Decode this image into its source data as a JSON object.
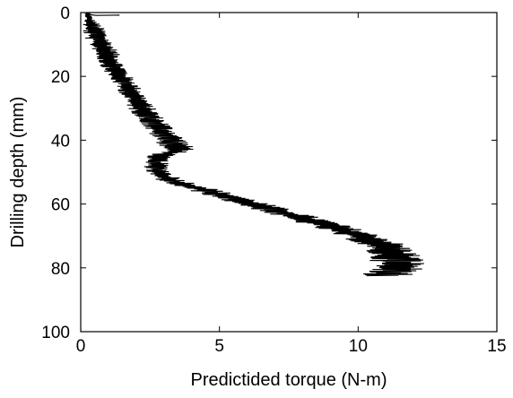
{
  "chart_data": {
    "type": "line",
    "title": "",
    "xlabel": "Predictided torque (N-m)",
    "ylabel": "Drilling depth (mm)",
    "xlim": [
      0,
      15
    ],
    "ylim": [
      0,
      100
    ],
    "y_inverted": true,
    "grid": false,
    "x_ticks": [
      0,
      5,
      10,
      15
    ],
    "y_ticks": [
      0,
      20,
      40,
      60,
      80,
      100
    ],
    "x_tick_labels": [
      "0",
      "5",
      "10",
      "15"
    ],
    "y_tick_labels": [
      "0",
      "20",
      "40",
      "60",
      "80",
      "100"
    ],
    "series": [
      {
        "color": "#000000",
        "style": "noisy",
        "x": [
          0.25,
          0.3,
          0.4,
          0.5,
          0.6,
          0.75,
          0.9,
          1.0,
          1.1,
          1.25,
          1.4,
          1.6,
          1.75,
          1.9,
          2.05,
          2.2,
          2.4,
          2.6,
          2.8,
          3.0,
          3.25,
          3.45,
          3.6,
          3.2,
          2.8,
          2.7,
          2.75,
          2.9,
          3.4,
          4.2,
          5.0,
          5.8,
          6.6,
          7.4,
          8.2,
          9.0,
          9.7,
          10.4,
          10.9,
          11.2,
          11.4,
          11.45,
          11.3,
          11.0
        ],
        "y": [
          0,
          2,
          4,
          6,
          8,
          10,
          12,
          14,
          16,
          18,
          20,
          22,
          24,
          26,
          28,
          30,
          32,
          34,
          36,
          38,
          40,
          42,
          43,
          44,
          45,
          47,
          49,
          51,
          53,
          55,
          57,
          59,
          61,
          63,
          65,
          67,
          69,
          71,
          73,
          75,
          77,
          79,
          81,
          82.5
        ],
        "noise": [
          0.1,
          0.15,
          0.35,
          0.45,
          0.45,
          0.45,
          0.45,
          0.45,
          0.45,
          0.45,
          0.45,
          0.45,
          0.45,
          0.45,
          0.45,
          0.5,
          0.5,
          0.5,
          0.55,
          0.55,
          0.6,
          0.6,
          0.6,
          0.5,
          0.45,
          0.45,
          0.45,
          0.5,
          0.55,
          0.6,
          0.6,
          0.65,
          0.65,
          0.7,
          0.75,
          0.75,
          0.8,
          0.85,
          0.9,
          0.95,
          1.0,
          1.0,
          1.0,
          0.9
        ]
      },
      {
        "color": "#000000",
        "style": "line",
        "x": [
          0.25,
          0.3,
          0.55,
          1.4
        ],
        "y": [
          0,
          0.6,
          0.9,
          0.8
        ]
      }
    ]
  }
}
